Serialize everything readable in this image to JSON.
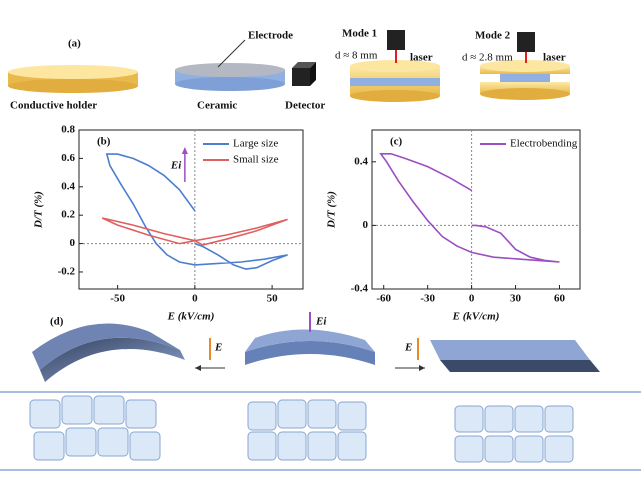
{
  "diagram": {
    "label_a": "(a)",
    "electrode": "Electrode",
    "holder": "Conductive holder",
    "ceramic": "Ceramic",
    "detector": "Detector",
    "mode1": "Mode 1",
    "d1": "d ≈ 8 mm",
    "laser1": "laser",
    "mode2": "Mode 2",
    "d2": "d ≈ 2.8 mm",
    "laser2": "laser",
    "label_d": "(d)",
    "field_left": "E",
    "field_mid": "Ei",
    "field_right": "E"
  },
  "chart_data": [
    {
      "type": "line",
      "panel": "(b)",
      "xlabel": "E (kV/cm)",
      "ylabel": "D/T (%)",
      "annotation": "Ei",
      "xlim": [
        -75,
        70
      ],
      "xticks": [
        -50,
        0,
        50
      ],
      "ylim": [
        -0.32,
        0.8
      ],
      "yticks": [
        -0.2,
        0.0,
        0.2,
        0.4,
        0.6,
        0.8
      ],
      "legend": "upper right",
      "series": [
        {
          "name": "Large size",
          "color": "#4a7fd0",
          "x": [
            0,
            -10,
            -20,
            -30,
            -40,
            -50,
            -57,
            -55,
            -48,
            -40,
            -32,
            -25,
            -18,
            -10,
            0,
            15,
            30,
            45,
            60,
            50,
            40,
            33,
            25,
            15,
            5,
            0
          ],
          "values": [
            0.23,
            0.38,
            0.48,
            0.55,
            0.6,
            0.63,
            0.63,
            0.55,
            0.42,
            0.28,
            0.12,
            0.0,
            -0.08,
            -0.13,
            -0.15,
            -0.14,
            -0.13,
            -0.11,
            -0.08,
            -0.12,
            -0.17,
            -0.18,
            -0.15,
            -0.08,
            -0.02,
            0.0
          ]
        },
        {
          "name": "Small size",
          "color": "#e06060",
          "x": [
            -60,
            -40,
            -20,
            0,
            20,
            40,
            60,
            40,
            20,
            5,
            0,
            -10,
            -30,
            -50,
            -60
          ],
          "values": [
            0.18,
            0.13,
            0.07,
            0.02,
            0.06,
            0.11,
            0.17,
            0.09,
            0.03,
            -0.01,
            0.02,
            0.0,
            0.06,
            0.13,
            0.18
          ]
        }
      ]
    },
    {
      "type": "line",
      "panel": "(c)",
      "xlabel": "E (kV/cm)",
      "ylabel": "D/T (%)",
      "xlim": [
        -68,
        74
      ],
      "xticks": [
        -60,
        -30,
        0,
        30,
        60
      ],
      "ylim": [
        -0.4,
        0.6
      ],
      "yticks": [
        -0.4,
        0.0,
        0.4
      ],
      "legend": "upper right",
      "series": [
        {
          "name": "Electrobending",
          "color": "#9b4fc0",
          "x": [
            0,
            -15,
            -30,
            -45,
            -55,
            -62,
            -58,
            -50,
            -40,
            -30,
            -20,
            -10,
            0,
            15,
            30,
            45,
            60,
            50,
            40,
            30,
            20,
            10,
            3,
            0
          ],
          "values": [
            0.22,
            0.3,
            0.37,
            0.42,
            0.45,
            0.45,
            0.4,
            0.28,
            0.15,
            0.03,
            -0.07,
            -0.13,
            -0.17,
            -0.2,
            -0.21,
            -0.22,
            -0.23,
            -0.22,
            -0.2,
            -0.15,
            -0.05,
            -0.01,
            0.0,
            0.0
          ]
        }
      ]
    }
  ]
}
